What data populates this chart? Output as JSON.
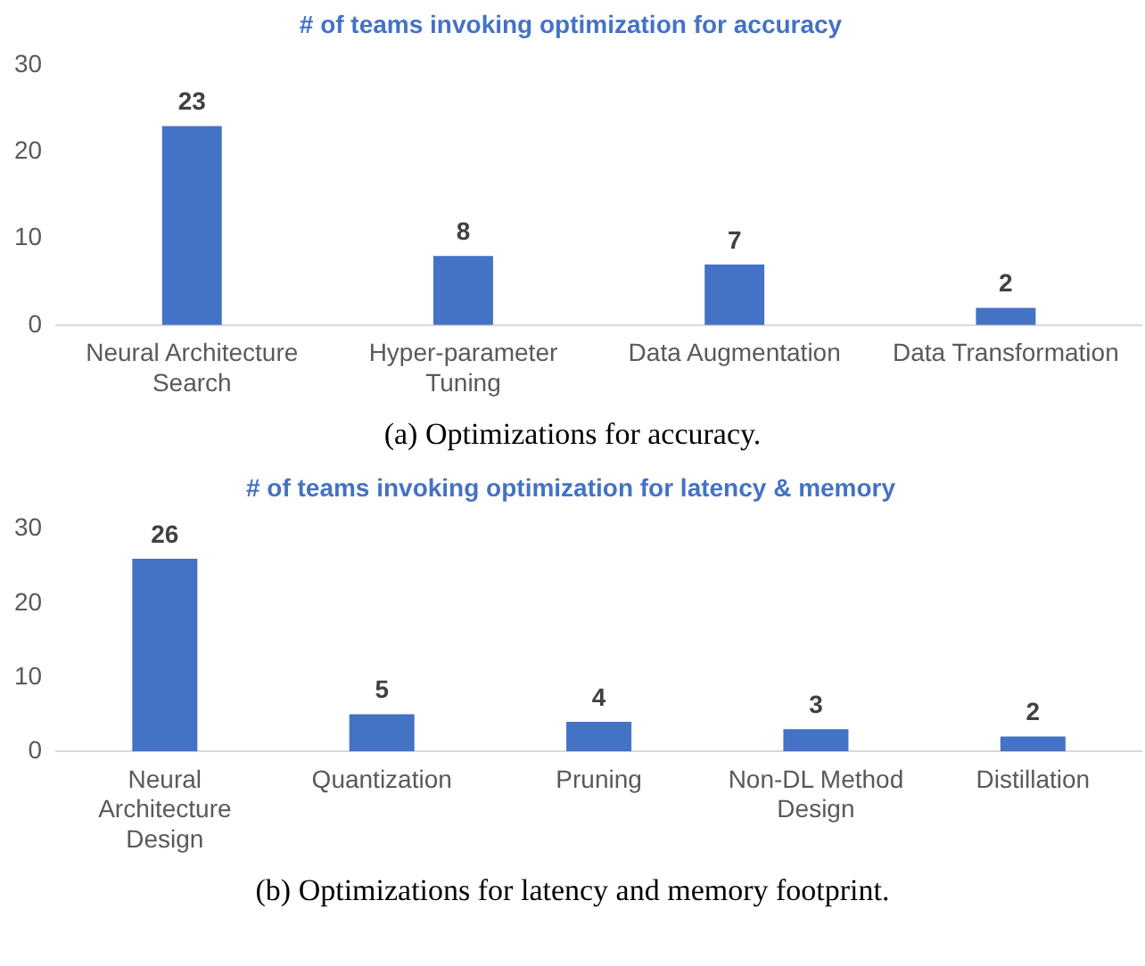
{
  "chart_data": [
    {
      "type": "bar",
      "title": "# of teams invoking optimization for accuracy",
      "categories": [
        "Neural Architecture Search",
        "Hyper-parameter Tuning",
        "Data Augmentation",
        "Data Transformation"
      ],
      "values": [
        23,
        8,
        7,
        2
      ],
      "color": "#4472c4",
      "ylim": [
        0,
        30
      ],
      "yticks": [
        0,
        10,
        20,
        30
      ],
      "grid": false,
      "legend": false,
      "data_labels": true,
      "annotations": [
        "(a) Optimizations for accuracy."
      ]
    },
    {
      "type": "bar",
      "title": "# of teams invoking optimization for latency & memory",
      "categories": [
        "Neural Architecture Design",
        "Quantization",
        "Pruning",
        "Non-DL Method Design",
        "Distillation"
      ],
      "values": [
        26,
        5,
        4,
        3,
        2
      ],
      "color": "#4472c4",
      "ylim": [
        0,
        30
      ],
      "yticks": [
        0,
        10,
        20,
        30
      ],
      "grid": false,
      "legend": false,
      "data_labels": true,
      "annotations": [
        "(b) Optimizations for latency and memory footprint."
      ]
    }
  ]
}
